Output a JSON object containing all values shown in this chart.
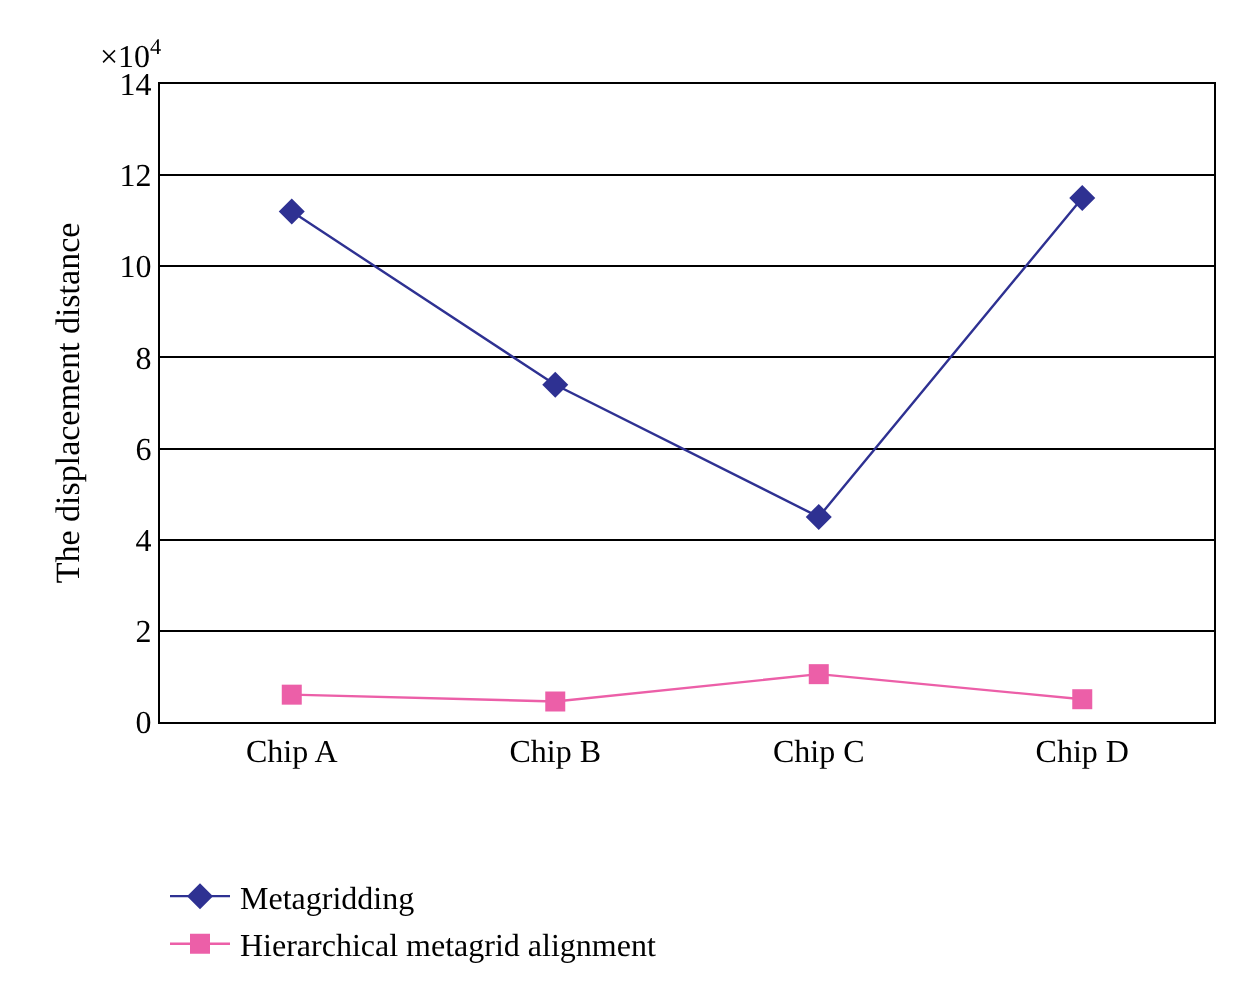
{
  "chart_data": {
    "type": "line",
    "ylabel": "The displacement distance",
    "categories": [
      "Chip A",
      "Chip B",
      "Chip C",
      "Chip D"
    ],
    "series": [
      {
        "name": "Metagridding",
        "color": "#2e3192",
        "values": [
          11.2,
          7.4,
          4.5,
          11.5
        ],
        "marker": "diamond"
      },
      {
        "name": "Hierarchical metagrid alignment",
        "color": "#ec5fa8",
        "values": [
          0.6,
          0.45,
          1.05,
          0.5
        ],
        "marker": "square"
      }
    ],
    "ylim": [
      0,
      14
    ],
    "yticks": [
      0,
      2,
      4,
      6,
      8,
      10,
      12,
      14
    ],
    "grid": "y",
    "legend": "bottom left",
    "annotations": [
      "×10$^{4}$"
    ]
  }
}
